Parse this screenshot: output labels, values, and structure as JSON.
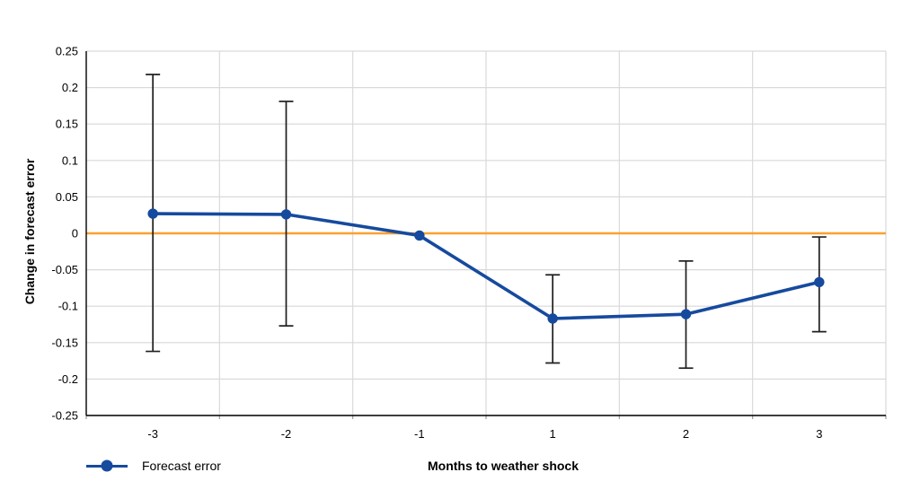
{
  "figure": {
    "background": "#ffffff"
  },
  "axes": {
    "y_title": "Change in forecast error",
    "x_title": "Months to weather shock"
  },
  "legend": {
    "label": "Forecast error"
  },
  "chart_data": {
    "type": "line",
    "title": "",
    "xlabel": "Months to weather shock",
    "ylabel": "Change in forecast error",
    "categories": [
      "-3",
      "-2",
      "-1",
      "1",
      "2",
      "3"
    ],
    "series": [
      {
        "name": "Forecast error",
        "color": "#164A9E",
        "values": [
          0.027,
          0.026,
          -0.003,
          -0.117,
          -0.111,
          -0.067
        ],
        "ci_low": [
          -0.162,
          -0.127,
          null,
          -0.178,
          -0.185,
          -0.135
        ],
        "ci_high": [
          0.218,
          0.181,
          null,
          -0.057,
          -0.038,
          -0.005
        ]
      }
    ],
    "ylim": [
      -0.25,
      0.25
    ],
    "ytick_step": 0.05,
    "yticks": [
      "0.25",
      "0.2",
      "0.15",
      "0.1",
      "0.05",
      "0",
      "-0.05",
      "-0.1",
      "-0.15",
      "-0.2",
      "-0.25"
    ],
    "zero_line": {
      "value": 0,
      "color": "#FAA02F"
    },
    "grid": true,
    "gridline_color": "#D9D9D9",
    "axis_color": "#000000",
    "errorbar_color": "#1F1F1F",
    "tick_label_color": "#000000",
    "legend_position": "bottom-left"
  }
}
